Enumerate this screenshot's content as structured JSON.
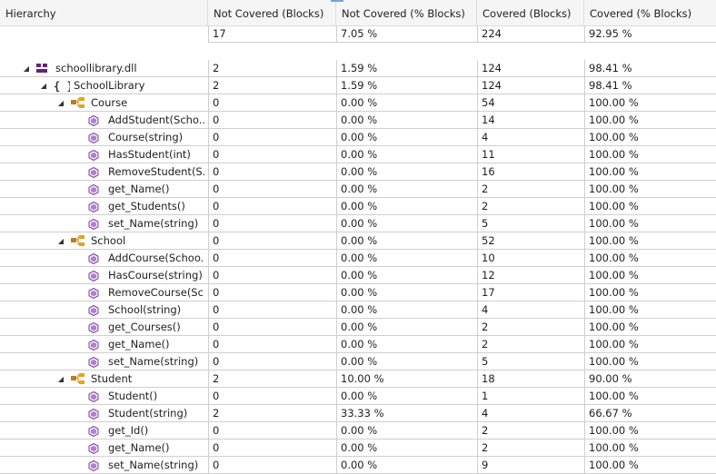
{
  "header": {
    "columns": [
      "Hierarchy",
      "Not Covered (Blocks)",
      "Not Covered (% Blocks)",
      "Covered (Blocks)",
      "Covered (% Blocks)"
    ]
  },
  "totals": {
    "not_covered_blocks": "17",
    "not_covered_pct": "7.05 %",
    "covered_blocks": "224",
    "covered_pct": "92.95 %"
  },
  "rows": [
    {
      "name": "schoollibrary.dll",
      "level": 0,
      "kind": "assembly",
      "expanded": true,
      "nc": "2",
      "ncp": "1.59 %",
      "cb": "124",
      "cp": "98.41 %"
    },
    {
      "name": "SchoolLibrary",
      "level": 1,
      "kind": "namespace",
      "expanded": true,
      "nc": "2",
      "ncp": "1.59 %",
      "cb": "124",
      "cp": "98.41 %"
    },
    {
      "name": "Course",
      "level": 2,
      "kind": "class",
      "expanded": true,
      "nc": "0",
      "ncp": "0.00 %",
      "cb": "54",
      "cp": "100.00 %"
    },
    {
      "name": "AddStudent(Scho...",
      "level": 3,
      "kind": "method",
      "nc": "0",
      "ncp": "0.00 %",
      "cb": "14",
      "cp": "100.00 %"
    },
    {
      "name": "Course(string)",
      "level": 3,
      "kind": "method",
      "nc": "0",
      "ncp": "0.00 %",
      "cb": "4",
      "cp": "100.00 %"
    },
    {
      "name": "HasStudent(int)",
      "level": 3,
      "kind": "method",
      "nc": "0",
      "ncp": "0.00 %",
      "cb": "11",
      "cp": "100.00 %"
    },
    {
      "name": "RemoveStudent(S...",
      "level": 3,
      "kind": "method",
      "nc": "0",
      "ncp": "0.00 %",
      "cb": "16",
      "cp": "100.00 %"
    },
    {
      "name": "get_Name()",
      "level": 3,
      "kind": "method",
      "nc": "0",
      "ncp": "0.00 %",
      "cb": "2",
      "cp": "100.00 %"
    },
    {
      "name": "get_Students()",
      "level": 3,
      "kind": "method",
      "nc": "0",
      "ncp": "0.00 %",
      "cb": "2",
      "cp": "100.00 %"
    },
    {
      "name": "set_Name(string)",
      "level": 3,
      "kind": "method",
      "nc": "0",
      "ncp": "0.00 %",
      "cb": "5",
      "cp": "100.00 %"
    },
    {
      "name": "School",
      "level": 2,
      "kind": "class",
      "expanded": true,
      "nc": "0",
      "ncp": "0.00 %",
      "cb": "52",
      "cp": "100.00 %"
    },
    {
      "name": "AddCourse(Schoo...",
      "level": 3,
      "kind": "method",
      "nc": "0",
      "ncp": "0.00 %",
      "cb": "10",
      "cp": "100.00 %"
    },
    {
      "name": "HasCourse(string)",
      "level": 3,
      "kind": "method",
      "nc": "0",
      "ncp": "0.00 %",
      "cb": "12",
      "cp": "100.00 %"
    },
    {
      "name": "RemoveCourse(Sc...",
      "level": 3,
      "kind": "method",
      "nc": "0",
      "ncp": "0.00 %",
      "cb": "17",
      "cp": "100.00 %"
    },
    {
      "name": "School(string)",
      "level": 3,
      "kind": "method",
      "nc": "0",
      "ncp": "0.00 %",
      "cb": "4",
      "cp": "100.00 %"
    },
    {
      "name": "get_Courses()",
      "level": 3,
      "kind": "method",
      "nc": "0",
      "ncp": "0.00 %",
      "cb": "2",
      "cp": "100.00 %"
    },
    {
      "name": "get_Name()",
      "level": 3,
      "kind": "method",
      "nc": "0",
      "ncp": "0.00 %",
      "cb": "2",
      "cp": "100.00 %"
    },
    {
      "name": "set_Name(string)",
      "level": 3,
      "kind": "method",
      "nc": "0",
      "ncp": "0.00 %",
      "cb": "5",
      "cp": "100.00 %"
    },
    {
      "name": "Student",
      "level": 2,
      "kind": "class",
      "expanded": true,
      "nc": "2",
      "ncp": "10.00 %",
      "cb": "18",
      "cp": "90.00 %"
    },
    {
      "name": "Student()",
      "level": 3,
      "kind": "method",
      "nc": "0",
      "ncp": "0.00 %",
      "cb": "1",
      "cp": "100.00 %"
    },
    {
      "name": "Student(string)",
      "level": 3,
      "kind": "method",
      "nc": "2",
      "ncp": "33.33 %",
      "cb": "4",
      "cp": "66.67 %"
    },
    {
      "name": "get_Id()",
      "level": 3,
      "kind": "method",
      "nc": "0",
      "ncp": "0.00 %",
      "cb": "2",
      "cp": "100.00 %"
    },
    {
      "name": "get_Name()",
      "level": 3,
      "kind": "method",
      "nc": "0",
      "ncp": "0.00 %",
      "cb": "2",
      "cp": "100.00 %"
    },
    {
      "name": "set_Name(string)",
      "level": 3,
      "kind": "method",
      "nc": "0",
      "ncp": "0.00 %",
      "cb": "9",
      "cp": "100.00 %"
    }
  ]
}
